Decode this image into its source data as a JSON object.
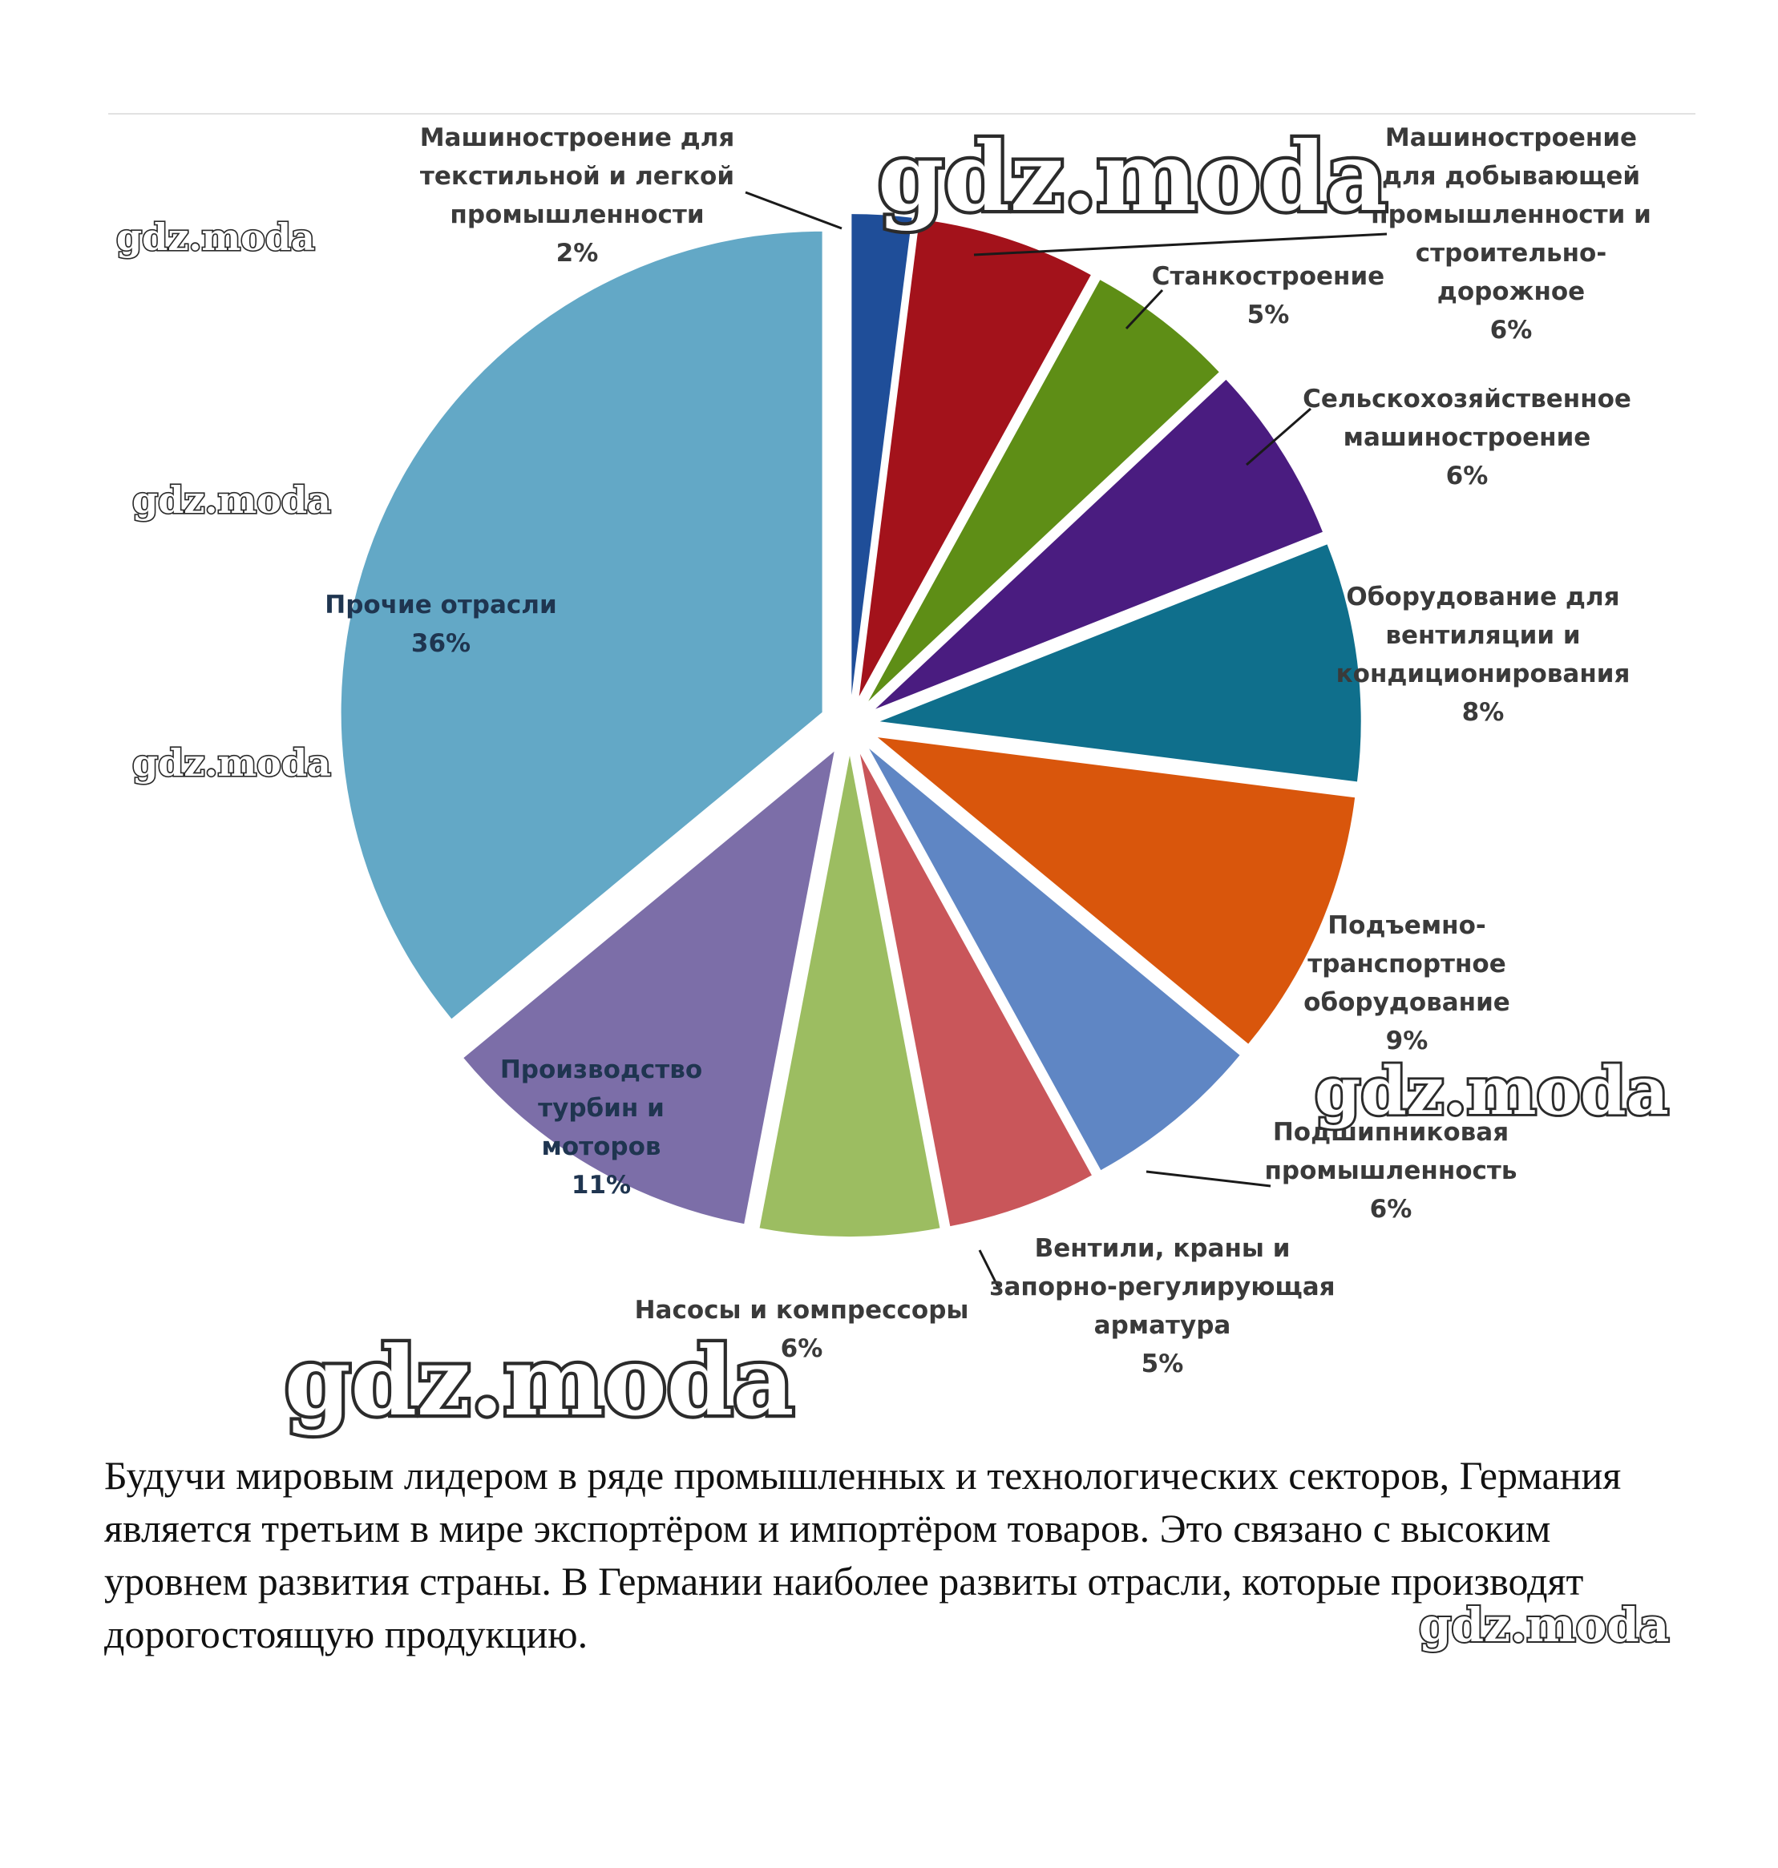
{
  "chart_data": {
    "type": "pie",
    "title": "",
    "unit": "%",
    "slices": [
      {
        "label": [
          "Машиностроение для",
          "текстильной и легкой",
          "промышленности"
        ],
        "value": 2,
        "value_text": "2%",
        "color": "#1f4e99"
      },
      {
        "label": [
          "Машиностроение",
          "для добывающей",
          "промышленности и",
          "строительно-",
          "дорожное"
        ],
        "value": 6,
        "value_text": "6%",
        "color": "#a3121b"
      },
      {
        "label": [
          "Станкостроение"
        ],
        "value": 5,
        "value_text": "5%",
        "color": "#5e8e16"
      },
      {
        "label": [
          "Сельскохозяйственное",
          "машиностроение"
        ],
        "value": 6,
        "value_text": "6%",
        "color": "#4a1c80"
      },
      {
        "label": [
          "Оборудование для",
          "вентиляции и",
          "кондиционирования"
        ],
        "value": 8,
        "value_text": "8%",
        "color": "#0f6f8c"
      },
      {
        "label": [
          "Подъемно-",
          "транспортное",
          "оборудование"
        ],
        "value": 9,
        "value_text": "9%",
        "color": "#d9560c"
      },
      {
        "label": [
          "Подшипниковая",
          "промышленность"
        ],
        "value": 6,
        "value_text": "6%",
        "color": "#5f86c4"
      },
      {
        "label": [
          "Вентили, краны и",
          "запорно-регулирующая",
          "арматура"
        ],
        "value": 5,
        "value_text": "5%",
        "color": "#c9565a"
      },
      {
        "label": [
          "Насосы и компрессоры"
        ],
        "value": 6,
        "value_text": "6%",
        "color": "#9cbd61"
      },
      {
        "label": [
          "Производство",
          "турбин и",
          "моторов"
        ],
        "value": 11,
        "value_text": "11%",
        "color": "#7c6ea8"
      },
      {
        "label": [
          "Прочие отрасли"
        ],
        "value": 36,
        "value_text": "36%",
        "color": "#63a8c6"
      }
    ]
  },
  "watermark": "gdz.moda",
  "caption": "Будучи мировым лидером в ряде промышленных и технологических секторов, Германия является третьим в мире экспортёром и импортёром товаров. Это связано с высоким уровнем развития страны. В Германии наиболее развиты отрасли, которые производят дорогостоящую продукцию."
}
